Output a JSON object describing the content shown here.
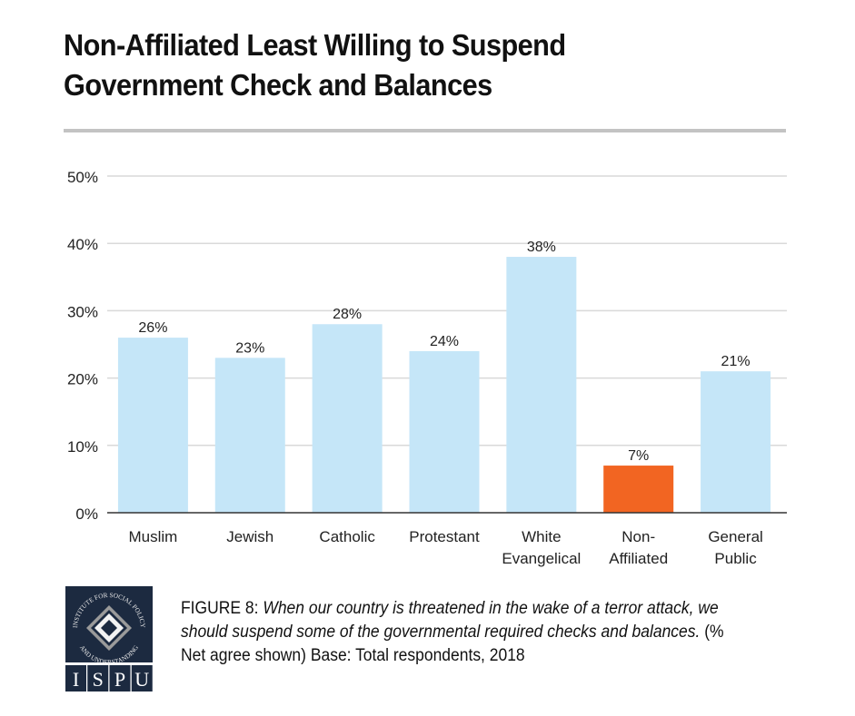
{
  "title": "Non-Affiliated Least Willing to Suspend Government Check and Balances",
  "title_lines": [
    "Non-Affiliated Least Willing to Suspend",
    "Government Check and Balances"
  ],
  "chart_data": {
    "type": "bar",
    "title": "Non-Affiliated Least Willing to Suspend Government Check and Balances",
    "xlabel": "",
    "ylabel": "",
    "ylim": [
      0,
      50
    ],
    "yticks": [
      0,
      10,
      20,
      30,
      40,
      50
    ],
    "ytick_labels": [
      "0%",
      "10%",
      "20%",
      "30%",
      "40%",
      "50%"
    ],
    "grid": true,
    "categories": [
      "Muslim",
      "Jewish",
      "Catholic",
      "Protestant",
      "White Evangelical",
      "Non-Affiliated",
      "General Public"
    ],
    "category_lines": [
      [
        "Muslim"
      ],
      [
        "Jewish"
      ],
      [
        "Catholic"
      ],
      [
        "Protestant"
      ],
      [
        "White",
        "Evangelical"
      ],
      [
        "Non-",
        "Affiliated"
      ],
      [
        "General",
        "Public"
      ]
    ],
    "values": [
      26,
      23,
      28,
      24,
      38,
      7,
      21
    ],
    "data_labels": [
      "26%",
      "23%",
      "28%",
      "24%",
      "38%",
      "7%",
      "21%"
    ],
    "colors": [
      "#c5e6f8",
      "#c5e6f8",
      "#c5e6f8",
      "#c5e6f8",
      "#c5e6f8",
      "#f26522",
      "#c5e6f8"
    ],
    "highlight": "Non-Affiliated"
  },
  "colors": {
    "bar": "#c5e6f8",
    "highlight": "#f26522",
    "grid": "#d9d9d9",
    "rule": "#c3c3c3",
    "logo_bg": "#1c2a40"
  },
  "caption": {
    "figure": "FIGURE 8",
    "separator": ": ",
    "question": "When our country is threatened in the wake of a terror attack, we should suspend some of the governmental required checks and balances.",
    "note": " (% Net agree shown) Base: Total respondents, 2018"
  },
  "logo": {
    "arc_text": "INSTITUTE FOR SOCIAL POLICY AND UNDERSTANDING",
    "letters": [
      "I",
      "S",
      "P",
      "U"
    ]
  }
}
